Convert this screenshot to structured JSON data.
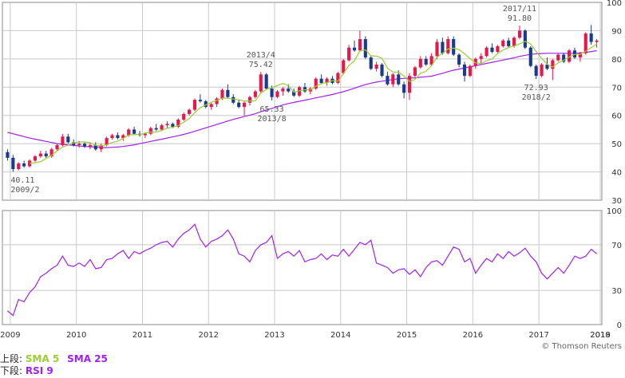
{
  "chart_data": [
    {
      "type": "candlestick",
      "panel": "upper",
      "ylim": [
        30,
        100
      ],
      "ytick_labels": [
        "100",
        "90",
        "80",
        "70",
        "60",
        "50",
        "40",
        "30"
      ],
      "ytick_values": [
        100,
        90,
        80,
        70,
        60,
        50,
        40,
        30
      ],
      "x_start": "2008-12",
      "xtick_labels": [
        "2009",
        "2010",
        "2011",
        "2012",
        "2013",
        "2014",
        "2015",
        "2016",
        "2017",
        "2018",
        "2019"
      ],
      "grid": true,
      "up_color": "#e8174b",
      "down_color": "#1b3a8c",
      "candles": [
        [
          47.0,
          48.0,
          44.0,
          45.0
        ],
        [
          45.0,
          46.0,
          40.1,
          41.0
        ],
        [
          41.0,
          43.5,
          40.5,
          43.0
        ],
        [
          43.0,
          44.0,
          41.5,
          42.0
        ],
        [
          42.0,
          44.5,
          41.5,
          44.0
        ],
        [
          44.0,
          46.0,
          43.5,
          45.5
        ],
        [
          45.5,
          47.5,
          45.0,
          46.5
        ],
        [
          46.5,
          47.5,
          45.0,
          45.5
        ],
        [
          45.5,
          48.5,
          45.0,
          48.0
        ],
        [
          48.0,
          50.0,
          47.5,
          49.5
        ],
        [
          49.5,
          53.5,
          49.0,
          52.5
        ],
        [
          52.5,
          53.5,
          50.0,
          50.5
        ],
        [
          50.5,
          51.5,
          49.0,
          49.5
        ],
        [
          49.5,
          51.0,
          48.5,
          50.0
        ],
        [
          50.0,
          50.5,
          48.5,
          49.0
        ],
        [
          49.0,
          50.5,
          48.0,
          49.5
        ],
        [
          49.5,
          50.5,
          47.5,
          48.0
        ],
        [
          48.0,
          50.0,
          47.0,
          49.5
        ],
        [
          49.5,
          52.5,
          49.0,
          52.0
        ],
        [
          52.0,
          53.5,
          51.5,
          53.0
        ],
        [
          53.0,
          54.0,
          51.5,
          52.0
        ],
        [
          52.0,
          53.5,
          51.0,
          53.0
        ],
        [
          53.0,
          55.5,
          52.5,
          55.0
        ],
        [
          55.0,
          56.0,
          53.0,
          53.5
        ],
        [
          53.5,
          54.5,
          52.5,
          53.0
        ],
        [
          53.0,
          54.0,
          52.0,
          53.5
        ],
        [
          53.5,
          56.0,
          53.0,
          55.5
        ],
        [
          55.5,
          57.0,
          54.5,
          55.0
        ],
        [
          55.0,
          57.0,
          54.5,
          56.5
        ],
        [
          56.5,
          58.0,
          55.5,
          57.0
        ],
        [
          57.0,
          57.5,
          55.5,
          56.0
        ],
        [
          56.0,
          59.0,
          55.5,
          58.5
        ],
        [
          58.5,
          61.0,
          58.0,
          60.5
        ],
        [
          60.5,
          62.5,
          60.0,
          62.0
        ],
        [
          62.0,
          66.0,
          61.5,
          65.5
        ],
        [
          65.5,
          67.5,
          64.5,
          65.0
        ],
        [
          65.0,
          65.5,
          62.5,
          63.0
        ],
        [
          63.0,
          64.5,
          62.0,
          64.0
        ],
        [
          64.0,
          66.5,
          63.0,
          66.0
        ],
        [
          66.0,
          69.5,
          65.5,
          69.0
        ],
        [
          69.0,
          71.0,
          66.0,
          66.5
        ],
        [
          66.5,
          67.5,
          64.0,
          64.5
        ],
        [
          64.5,
          65.5,
          62.5,
          63.0
        ],
        [
          63.0,
          65.0,
          60.0,
          64.5
        ],
        [
          64.5,
          67.0,
          63.5,
          66.5
        ],
        [
          66.5,
          69.0,
          66.0,
          68.5
        ],
        [
          68.5,
          75.4,
          68.0,
          74.5
        ],
        [
          74.5,
          75.0,
          69.0,
          69.5
        ],
        [
          69.5,
          70.5,
          65.3,
          66.5
        ],
        [
          66.5,
          69.0,
          66.0,
          68.5
        ],
        [
          68.5,
          70.0,
          67.0,
          69.5
        ],
        [
          69.5,
          71.0,
          68.0,
          68.5
        ],
        [
          68.5,
          69.5,
          66.5,
          67.0
        ],
        [
          67.0,
          70.5,
          66.5,
          70.0
        ],
        [
          70.0,
          71.5,
          68.0,
          68.5
        ],
        [
          68.5,
          70.0,
          67.5,
          69.5
        ],
        [
          69.5,
          73.5,
          69.0,
          73.0
        ],
        [
          73.0,
          74.5,
          71.0,
          71.5
        ],
        [
          71.5,
          73.5,
          70.5,
          73.0
        ],
        [
          73.0,
          74.0,
          71.0,
          71.5
        ],
        [
          71.5,
          75.5,
          71.0,
          75.0
        ],
        [
          75.0,
          80.0,
          74.5,
          79.5
        ],
        [
          79.5,
          85.0,
          79.0,
          84.0
        ],
        [
          84.0,
          86.5,
          82.5,
          83.0
        ],
        [
          83.0,
          90.0,
          82.5,
          87.0
        ],
        [
          87.0,
          88.0,
          80.0,
          80.5
        ],
        [
          80.5,
          81.0,
          76.0,
          76.5
        ],
        [
          76.5,
          79.0,
          75.5,
          78.0
        ],
        [
          78.0,
          78.5,
          73.5,
          74.0
        ],
        [
          74.0,
          75.5,
          70.5,
          71.0
        ],
        [
          71.0,
          75.0,
          70.0,
          74.5
        ],
        [
          74.5,
          76.0,
          70.5,
          71.0
        ],
        [
          71.0,
          72.0,
          66.0,
          68.0
        ],
        [
          68.0,
          75.0,
          65.5,
          74.0
        ],
        [
          74.0,
          77.5,
          73.5,
          77.0
        ],
        [
          77.0,
          81.0,
          76.5,
          80.0
        ],
        [
          80.0,
          81.0,
          77.5,
          78.0
        ],
        [
          78.0,
          82.0,
          77.5,
          81.0
        ],
        [
          81.0,
          87.0,
          80.0,
          86.0
        ],
        [
          86.0,
          87.5,
          81.5,
          82.0
        ],
        [
          82.0,
          88.0,
          81.5,
          87.0
        ],
        [
          87.0,
          88.0,
          81.0,
          81.5
        ],
        [
          81.5,
          82.0,
          77.0,
          78.0
        ],
        [
          78.0,
          79.0,
          72.0,
          74.0
        ],
        [
          74.0,
          78.0,
          73.5,
          77.5
        ],
        [
          77.5,
          80.5,
          76.5,
          80.0
        ],
        [
          80.0,
          82.0,
          78.5,
          81.0
        ],
        [
          81.0,
          84.5,
          80.5,
          84.0
        ],
        [
          84.0,
          85.5,
          82.0,
          82.5
        ],
        [
          82.5,
          85.0,
          82.0,
          84.5
        ],
        [
          84.5,
          87.0,
          84.0,
          86.5
        ],
        [
          86.5,
          87.5,
          84.0,
          84.5
        ],
        [
          84.5,
          88.0,
          84.0,
          87.5
        ],
        [
          87.5,
          91.8,
          87.0,
          90.0
        ],
        [
          90.0,
          90.5,
          83.5,
          84.0
        ],
        [
          84.0,
          84.5,
          77.0,
          77.5
        ],
        [
          77.5,
          78.0,
          72.9,
          74.0
        ],
        [
          74.0,
          78.5,
          73.5,
          78.0
        ],
        [
          78.0,
          80.5,
          76.0,
          76.5
        ],
        [
          76.5,
          80.0,
          72.5,
          79.5
        ],
        [
          79.5,
          82.0,
          79.0,
          81.5
        ],
        [
          81.5,
          82.0,
          78.5,
          79.0
        ],
        [
          79.0,
          83.5,
          78.5,
          83.0
        ],
        [
          83.0,
          84.0,
          80.0,
          80.5
        ],
        [
          80.5,
          82.5,
          79.0,
          82.0
        ],
        [
          82.0,
          89.5,
          81.5,
          89.0
        ],
        [
          89.0,
          92.0,
          85.0,
          86.0
        ],
        [
          86.0,
          87.0,
          84.0,
          86.5
        ]
      ],
      "sma5": [
        null,
        null,
        null,
        null,
        43.0,
        43.2,
        43.6,
        44.7,
        45.9,
        47.4,
        48.8,
        49.5,
        50.3,
        50.6,
        50.6,
        50.3,
        49.4,
        49.2,
        49.6,
        50.4,
        50.9,
        51.9,
        53.0,
        53.3,
        53.2,
        53.7,
        54.1,
        54.1,
        54.7,
        55.5,
        55.8,
        56.4,
        57.6,
        58.9,
        61.0,
        62.7,
        63.7,
        64.6,
        65.3,
        66.1,
        66.1,
        65.8,
        65.5,
        65.1,
        65.1,
        65.2,
        67.9,
        69.2,
        69.8,
        70.6,
        71.3,
        70.6,
        68.2,
        68.7,
        69.1,
        69.0,
        70.3,
        71.3,
        71.6,
        72.3,
        72.1,
        74.8,
        77.7,
        79.3,
        82.9,
        83.2,
        81.1,
        81.0,
        80.2,
        76.7,
        75.4,
        75.3,
        74.0,
        72.0,
        72.7,
        74.9,
        75.6,
        77.6,
        80.6,
        82.0,
        83.5,
        83.8,
        83.3,
        81.8,
        80.1,
        78.6,
        78.3,
        79.3,
        80.0,
        81.9,
        83.2,
        84.0,
        84.6,
        85.3,
        86.2,
        85.3,
        82.6,
        80.2,
        78.1,
        77.1,
        78.6,
        79.5,
        80.7,
        81.6,
        81.6,
        82.7,
        84.0,
        85.2
      ],
      "sma25": [
        54.0,
        53.5,
        53.0,
        52.5,
        52.0,
        51.6,
        51.2,
        50.8,
        50.4,
        50.0,
        49.8,
        49.6,
        49.4,
        49.2,
        49.0,
        48.9,
        48.8,
        48.7,
        48.6,
        48.7,
        48.8,
        49.0,
        49.3,
        49.6,
        50.0,
        50.4,
        50.8,
        51.2,
        51.6,
        52.0,
        52.4,
        52.8,
        53.3,
        53.8,
        54.4,
        55.0,
        55.6,
        56.2,
        56.8,
        57.4,
        58.0,
        58.6,
        59.1,
        59.6,
        60.1,
        60.6,
        61.3,
        61.9,
        62.5,
        63.1,
        63.7,
        64.2,
        64.6,
        65.0,
        65.4,
        65.8,
        66.2,
        66.6,
        67.0,
        67.4,
        67.9,
        68.4,
        69.0,
        69.6,
        70.3,
        70.9,
        71.4,
        71.8,
        72.1,
        72.4,
        72.7,
        73.0,
        73.1,
        73.2,
        73.3,
        73.5,
        73.7,
        73.9,
        74.4,
        74.9,
        75.5,
        76.0,
        76.4,
        76.8,
        77.2,
        77.6,
        78.0,
        78.4,
        78.8,
        79.2,
        79.6,
        80.0,
        80.4,
        80.9,
        81.3,
        81.6,
        81.8,
        81.9,
        82.0,
        82.0,
        82.0,
        82.0,
        82.0,
        82.0,
        82.1,
        82.3,
        82.6,
        82.9
      ],
      "annotations": [
        {
          "label_top": "2017/11",
          "label_bottom": "91.80",
          "index": 93,
          "value": 91.8,
          "side": "above"
        },
        {
          "label_top": "2013/4",
          "label_bottom": "75.42",
          "index": 46,
          "value": 75.42,
          "side": "above"
        },
        {
          "label_top": "65.33",
          "label_bottom": "2013/8",
          "index": 48,
          "value": 65.33,
          "side": "below"
        },
        {
          "label_top": "72.93",
          "label_bottom": "2018/2",
          "index": 96,
          "value": 72.93,
          "side": "below"
        },
        {
          "label_top": "40.11",
          "label_bottom": "2009/2",
          "index": 1,
          "value": 40.11,
          "side": "below"
        }
      ]
    },
    {
      "type": "line",
      "panel": "lower",
      "ylim": [
        0,
        100
      ],
      "ytick_labels": [
        "100",
        "70",
        "30",
        "0"
      ],
      "ytick_values": [
        100,
        70,
        30,
        0
      ],
      "grid": true,
      "series": [
        {
          "color": "#a020f0",
          "values": [
            12,
            8,
            22,
            20,
            28,
            33,
            42,
            45,
            49,
            52,
            60,
            52,
            51,
            54,
            51,
            57,
            49,
            50,
            57,
            58,
            62,
            65,
            58,
            64,
            62,
            65,
            67,
            70,
            72,
            73,
            68,
            75,
            80,
            83,
            88,
            75,
            68,
            73,
            75,
            78,
            83,
            75,
            62,
            60,
            55,
            65,
            70,
            72,
            78,
            58,
            62,
            64,
            60,
            65,
            55,
            57,
            58,
            62,
            57,
            61,
            60,
            66,
            60,
            66,
            72,
            70,
            74,
            54,
            52,
            50,
            45,
            48,
            49,
            44,
            48,
            42,
            50,
            55,
            56,
            52,
            60,
            68,
            66,
            55,
            58,
            45,
            52,
            58,
            55,
            62,
            58,
            64,
            60,
            63,
            67,
            60,
            55,
            45,
            40,
            45,
            50,
            45,
            52,
            60,
            58,
            60,
            66,
            62
          ]
        }
      ]
    }
  ],
  "legend": {
    "upper_label": "上段:",
    "upper_sma5": "SMA 5",
    "upper_sma25": "SMA 25",
    "lower_label": "下段:",
    "lower_rsi": "RSI 9"
  },
  "credit": "© Thomson Reuters",
  "colors": {
    "sma5": "#9acd32",
    "sma25": "#a020f0",
    "rsi": "#a020f0",
    "grid": "#c8c8c8",
    "axis": "#888888"
  }
}
